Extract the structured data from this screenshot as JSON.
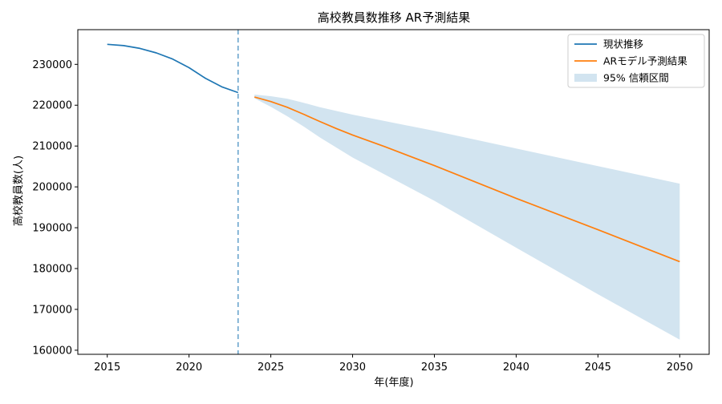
{
  "chart_data": {
    "type": "line",
    "title": "高校教員数推移 AR予測結果",
    "xlabel": "年(年度)",
    "ylabel": "高校教員数(人)",
    "xlim": [
      2013.2,
      2051.8
    ],
    "ylim": [
      159000,
      238500
    ],
    "xticks": [
      2015,
      2020,
      2025,
      2030,
      2035,
      2040,
      2045,
      2050
    ],
    "yticks": [
      160000,
      170000,
      180000,
      190000,
      200000,
      210000,
      220000,
      230000
    ],
    "vline_x": 2023,
    "legend_position": "top-right",
    "grid": false,
    "series": [
      {
        "name": "現状推移",
        "color": "#1f77b4",
        "x": [
          2015,
          2016,
          2017,
          2018,
          2019,
          2020,
          2021,
          2022,
          2023
        ],
        "y": [
          234900,
          234600,
          233900,
          232800,
          231300,
          229200,
          226600,
          224500,
          223100
        ]
      },
      {
        "name": "ARモデル予測結果",
        "color": "#ff7f0e",
        "x": [
          2024,
          2025,
          2026,
          2027,
          2028,
          2029,
          2030,
          2032,
          2035,
          2040,
          2045,
          2050
        ],
        "y": [
          222000,
          220900,
          219500,
          217800,
          216000,
          214300,
          212700,
          209800,
          205200,
          197200,
          189500,
          181700
        ]
      }
    ],
    "band": {
      "name": "95% 信頼区間",
      "color": "#1f77b4",
      "opacity": 0.2,
      "x": [
        2024,
        2025,
        2026,
        2027,
        2028,
        2030,
        2035,
        2040,
        2045,
        2050
      ],
      "upper": [
        222600,
        222200,
        221600,
        220600,
        219500,
        217700,
        213700,
        209400,
        205100,
        200800
      ],
      "lower": [
        221700,
        219600,
        217300,
        214800,
        212100,
        207200,
        196600,
        185100,
        173700,
        162600
      ]
    }
  }
}
